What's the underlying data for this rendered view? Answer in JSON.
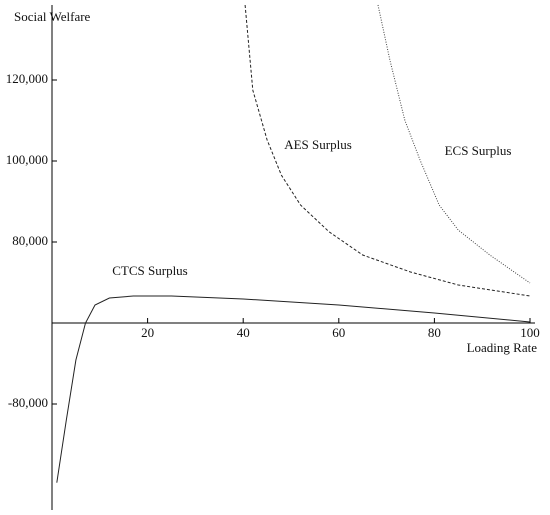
{
  "chart_data": {
    "type": "line",
    "y_label": "Social Welfare",
    "x_label": "Loading Rate",
    "xlim": [
      0,
      100
    ],
    "xticks": [
      20,
      40,
      60,
      80,
      100
    ],
    "ylim": [
      -185000,
      138500
    ],
    "yticks": [
      {
        "value": -80000,
        "label": "-80,000"
      },
      {
        "value": 80000,
        "label": "80,000"
      },
      {
        "value": 100000,
        "label": "100,000"
      },
      {
        "value": 120000,
        "label": "120,000"
      }
    ],
    "series": [
      {
        "name": "CTCS Surplus",
        "color": "#222222",
        "style": "solid",
        "x": [
          1,
          3,
          5,
          7,
          9,
          12,
          17,
          25,
          40,
          60,
          80,
          100
        ],
        "values": [
          -158000,
          -96000,
          -36500,
          0,
          17800,
          24700,
          26700,
          26700,
          23700,
          17800,
          9900,
          1000
        ]
      },
      {
        "name": "AES Surplus",
        "color": "#222222",
        "style": "dashed",
        "x": [
          40.4,
          42,
          45,
          48,
          52,
          58,
          65,
          75,
          85,
          100
        ],
        "values": [
          138500,
          117500,
          105200,
          96500,
          89100,
          82500,
          67200,
          50400,
          37500,
          26700
        ]
      },
      {
        "name": "ECS Surplus",
        "color": "#444444",
        "style": "dotted",
        "x": [
          68.2,
          70.7,
          73.8,
          77,
          81,
          85,
          91.6,
          100
        ],
        "values": [
          138500,
          124900,
          110100,
          100200,
          89100,
          82950,
          67200,
          39500
        ]
      }
    ]
  }
}
